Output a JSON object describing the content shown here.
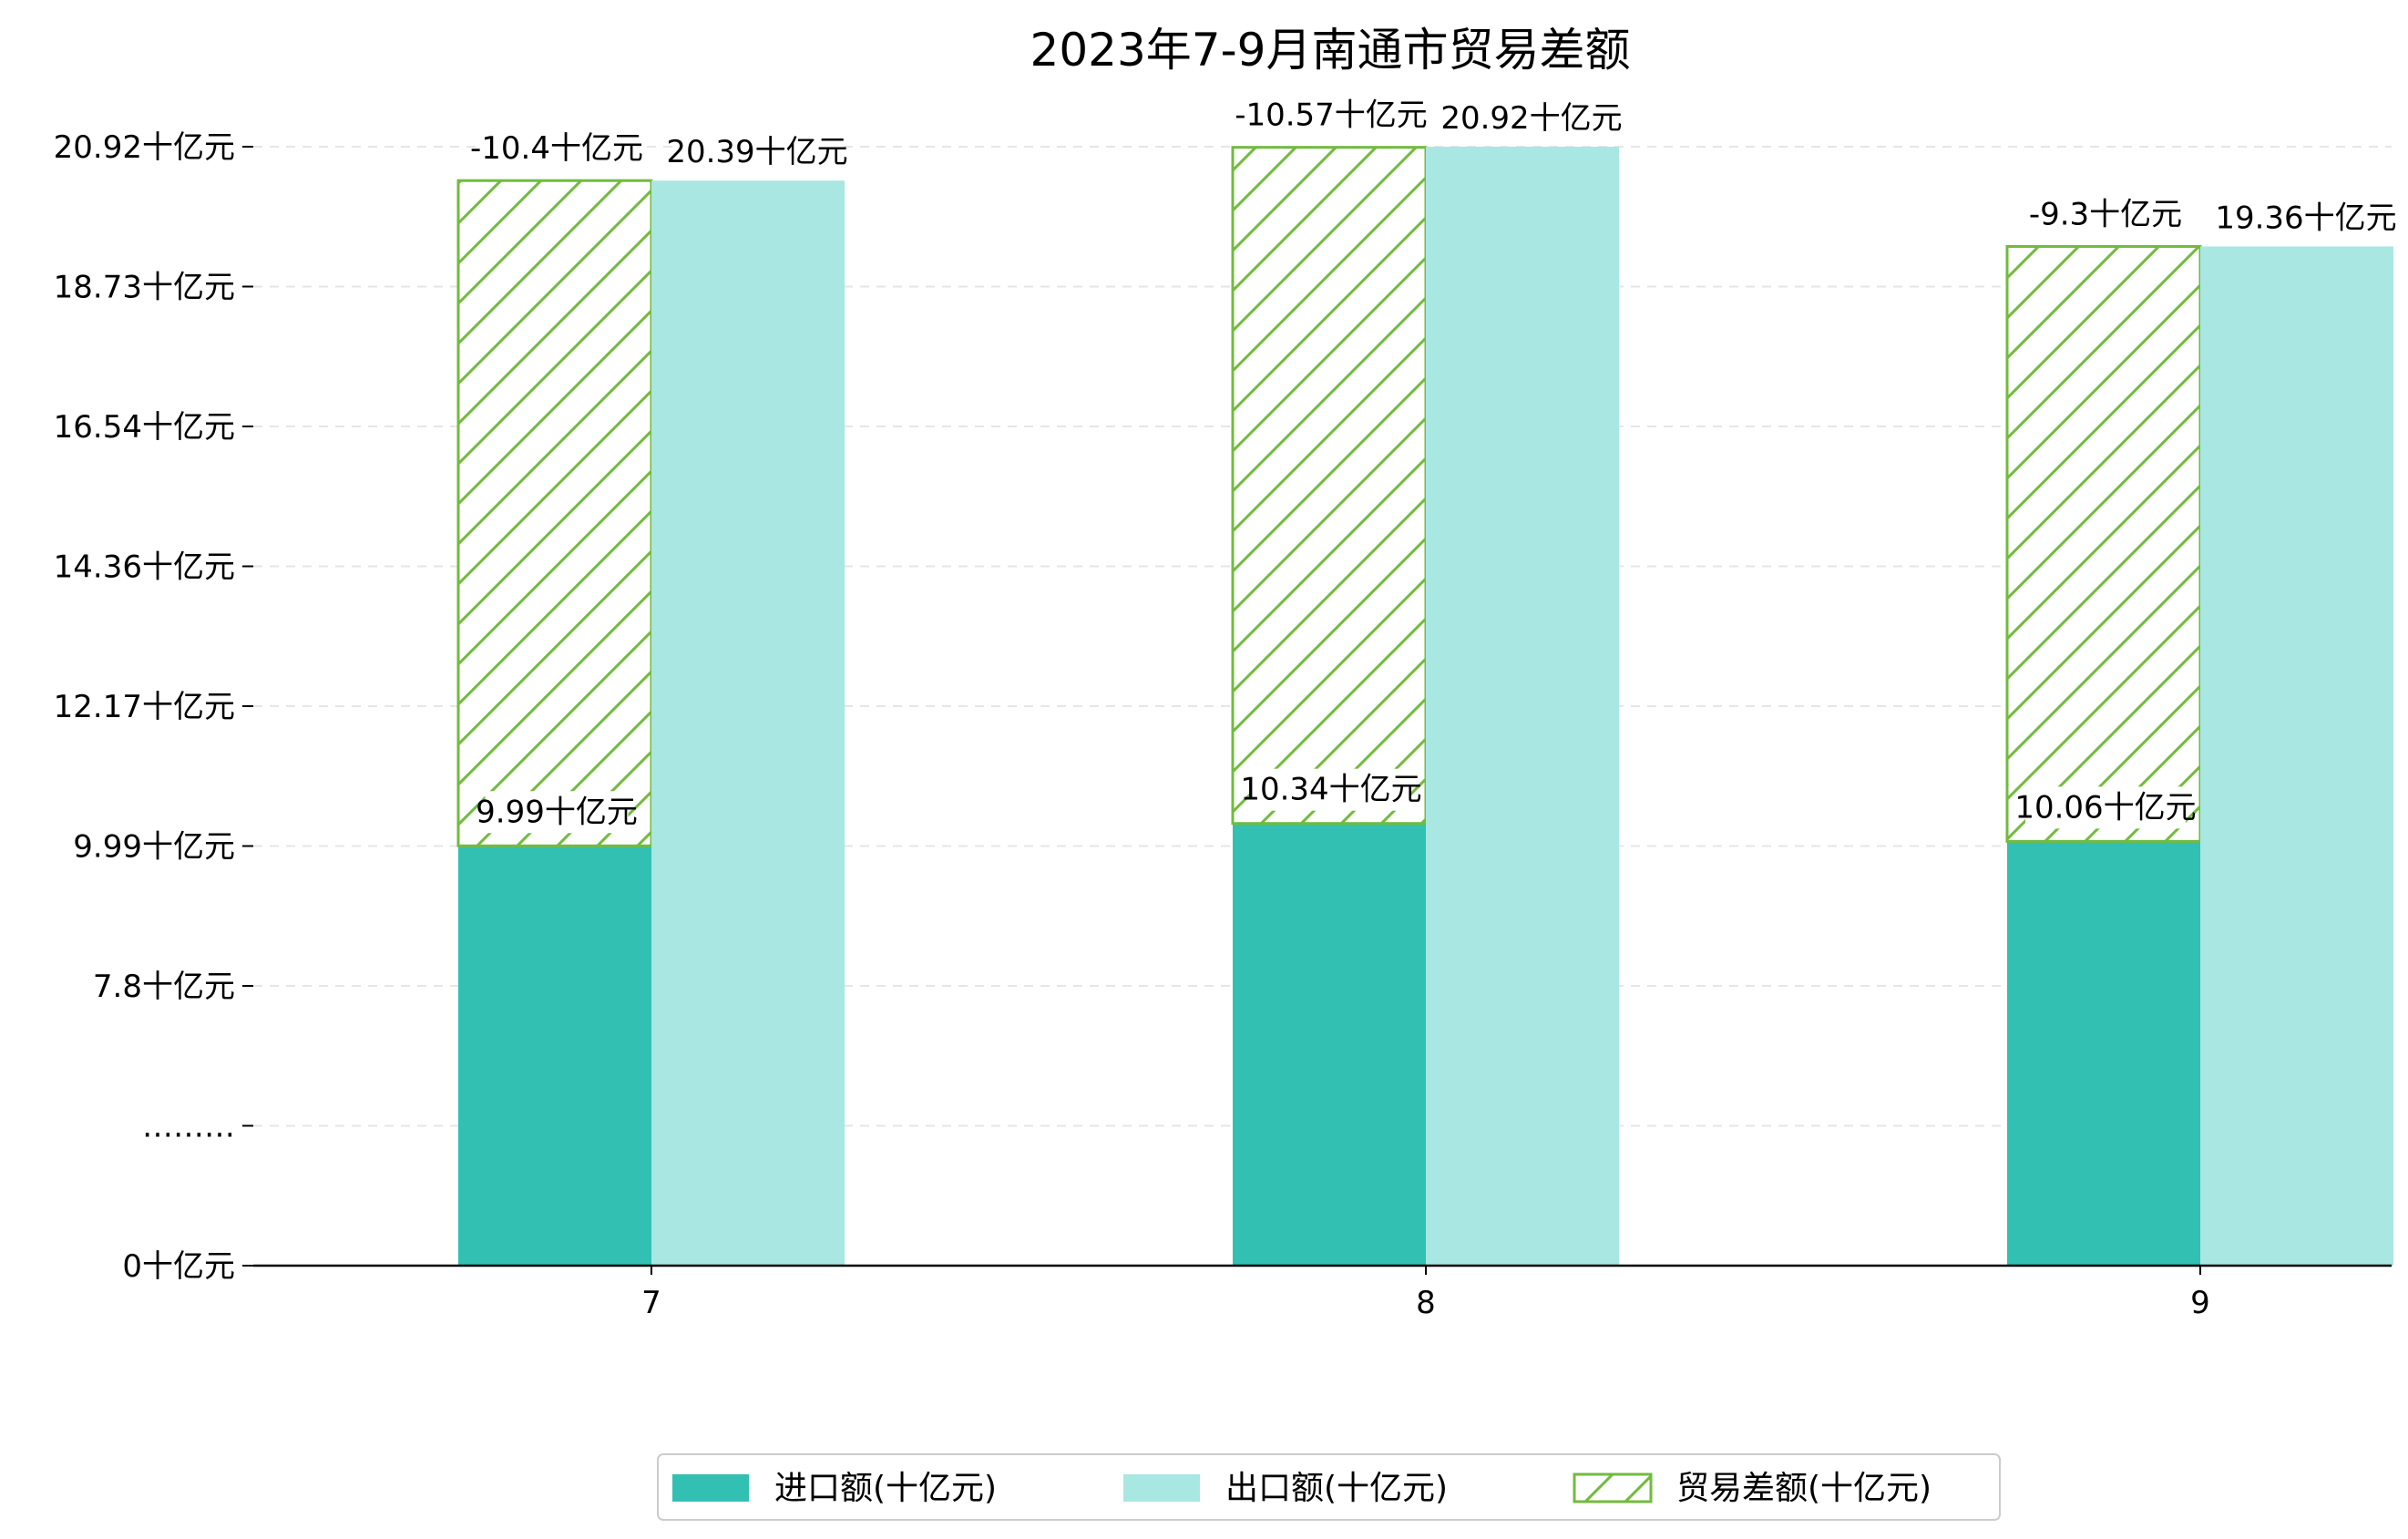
{
  "chart_data": {
    "type": "bar",
    "title": "2023年7-9月南通市贸易差额",
    "categories": [
      "7",
      "8",
      "9"
    ],
    "y_tick_labels": [
      "0十亿元",
      "………",
      "7.8十亿元",
      "9.99十亿元",
      "12.17十亿元",
      "14.36十亿元",
      "16.54十亿元",
      "18.73十亿元",
      "20.92十亿元"
    ],
    "y_axis_break": true,
    "grid": "horizontal dashed",
    "legend_position": "bottom-center",
    "series": [
      {
        "name": "进口额(十亿元)",
        "values": [
          9.99,
          10.34,
          10.06
        ],
        "labels": [
          "9.99十亿元",
          "10.34十亿元",
          "10.06十亿元"
        ],
        "color": "#32c0b3",
        "style": "solid"
      },
      {
        "name": "出口额(十亿元)",
        "values": [
          20.39,
          20.92,
          19.36
        ],
        "labels": [
          "20.39十亿元",
          "20.92十亿元",
          "19.36十亿元"
        ],
        "color": "#a9e7e2",
        "style": "solid"
      },
      {
        "name": "贸易差额(十亿元)",
        "values": [
          -10.4,
          -10.57,
          -9.3
        ],
        "labels": [
          "-10.4十亿元",
          "-10.57十亿元",
          "-9.3十亿元"
        ],
        "color": "#72bb3e",
        "style": "hatched",
        "stacked_on": "进口额(十亿元)"
      }
    ]
  }
}
